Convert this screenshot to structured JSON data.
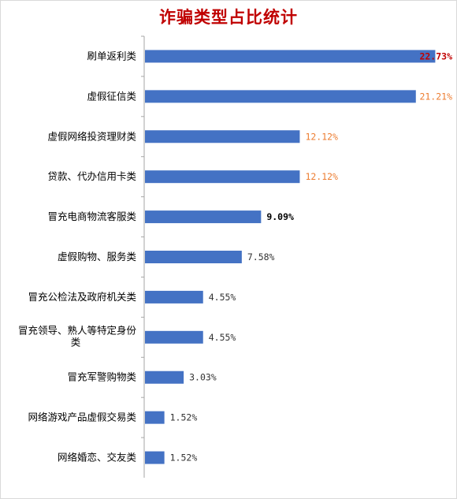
{
  "chart_data": {
    "type": "bar",
    "orientation": "horizontal",
    "title": "诈骗类型占比统计",
    "categories": [
      [
        "刷单返利类"
      ],
      [
        "虚假征信类"
      ],
      [
        "虚假网络投资理财类"
      ],
      [
        "贷款、代办信用卡类"
      ],
      [
        "冒充电商物流客服类"
      ],
      [
        "虚假购物、服务类"
      ],
      [
        "冒充公检法及政府机关类"
      ],
      [
        "冒充领导、熟人等特定身份",
        "类"
      ],
      [
        "冒充军警购物类"
      ],
      [
        "网络游戏产品虚假交易类"
      ],
      [
        "网络婚恋、交友类"
      ]
    ],
    "values": [
      22.73,
      21.21,
      12.12,
      12.12,
      9.09,
      7.58,
      4.55,
      4.55,
      3.03,
      1.52,
      1.52
    ],
    "value_labels": [
      "22.73%",
      "21.21%",
      "12.12%",
      "12.12%",
      "9.09%",
      "7.58%",
      "4.55%",
      "4.55%",
      "3.03%",
      "1.52%",
      "1.52%"
    ],
    "label_colors": [
      "#c00000",
      "#ed7d31",
      "#ed7d31",
      "#ed7d31",
      "#000000",
      "#333333",
      "#333333",
      "#333333",
      "#333333",
      "#333333",
      "#333333"
    ],
    "label_bold": [
      true,
      false,
      false,
      false,
      true,
      false,
      false,
      false,
      false,
      false,
      false
    ],
    "xlim": [
      0,
      24
    ],
    "bar_color": "#4472c4",
    "grid": false,
    "legend": "none"
  }
}
